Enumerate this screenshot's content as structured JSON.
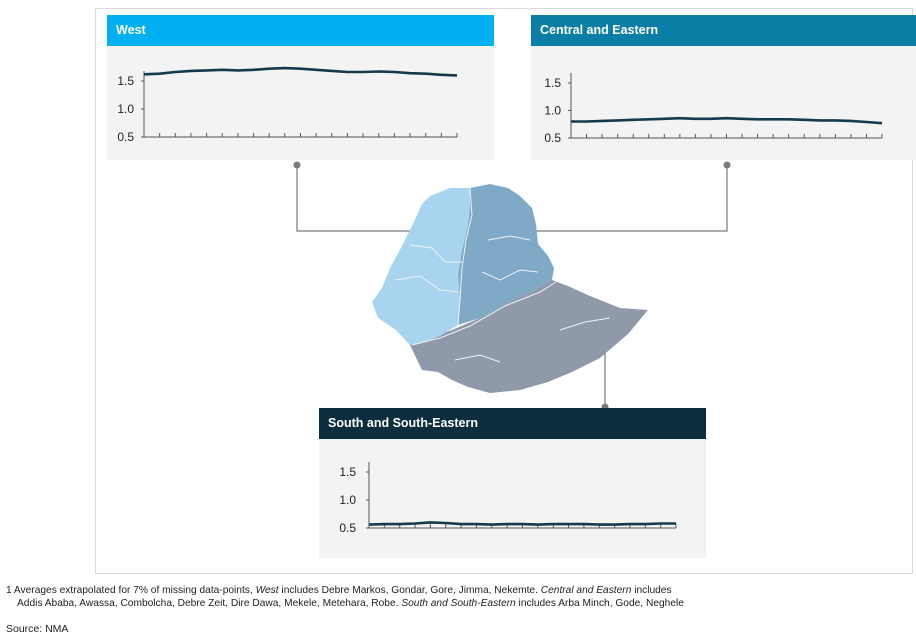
{
  "chart_data": [
    {
      "type": "line",
      "title": "West",
      "color": "#00b0f0",
      "ylim": [
        0.5,
        1.5
      ],
      "yticks": [
        "1.5",
        "1.0",
        "0.5"
      ],
      "series": [
        {
          "values": [
            1.62,
            1.63,
            1.66,
            1.68,
            1.69,
            1.7,
            1.69,
            1.7,
            1.72,
            1.73,
            1.72,
            1.7,
            1.68,
            1.66,
            1.66,
            1.67,
            1.66,
            1.64,
            1.63,
            1.61,
            1.6
          ]
        }
      ]
    },
    {
      "type": "line",
      "title": "Central and Eastern",
      "color": "#0a7ea4",
      "ylim": [
        0.5,
        1.5
      ],
      "yticks": [
        "1.5",
        "1.0",
        "0.5"
      ],
      "series": [
        {
          "values": [
            0.8,
            0.8,
            0.81,
            0.82,
            0.83,
            0.84,
            0.85,
            0.86,
            0.85,
            0.85,
            0.86,
            0.85,
            0.84,
            0.84,
            0.84,
            0.83,
            0.82,
            0.82,
            0.81,
            0.79,
            0.77
          ]
        }
      ]
    },
    {
      "type": "line",
      "title": "South and South-Eastern",
      "color": "#0b2d3e",
      "ylim": [
        0.5,
        1.5
      ],
      "yticks": [
        "1.5",
        "1.0",
        "0.5"
      ],
      "series": [
        {
          "values": [
            0.56,
            0.57,
            0.57,
            0.58,
            0.6,
            0.59,
            0.57,
            0.57,
            0.56,
            0.57,
            0.57,
            0.56,
            0.57,
            0.57,
            0.57,
            0.56,
            0.56,
            0.57,
            0.57,
            0.58,
            0.58
          ]
        }
      ]
    }
  ],
  "map": {
    "region_colors": {
      "west": "#a9d4f0",
      "central": "#7fa9c6",
      "south": "#8f99aa",
      "borders": "#eef3f8"
    },
    "connector_color": "#7a7a7a"
  },
  "footnote": {
    "line1_a": "1 Averages extrapolated for 7% of missing data-points, ",
    "line1_b": "West",
    "line1_c": " includes Debre Markos, Gondar, Gore, Jimma, Nekemte.  ",
    "line1_d": "Central and Eastern",
    "line1_e": " includes",
    "line2_a": "Addis Ababa, Awassa, Combolcha, Debre Zeit, Dire Dawa, Mekele, Metehara, Robe.  ",
    "line2_b": "South and South-Eastern",
    "line2_c": " includes Arba Minch, Gode, Neghele"
  },
  "source": "Source: NMA"
}
